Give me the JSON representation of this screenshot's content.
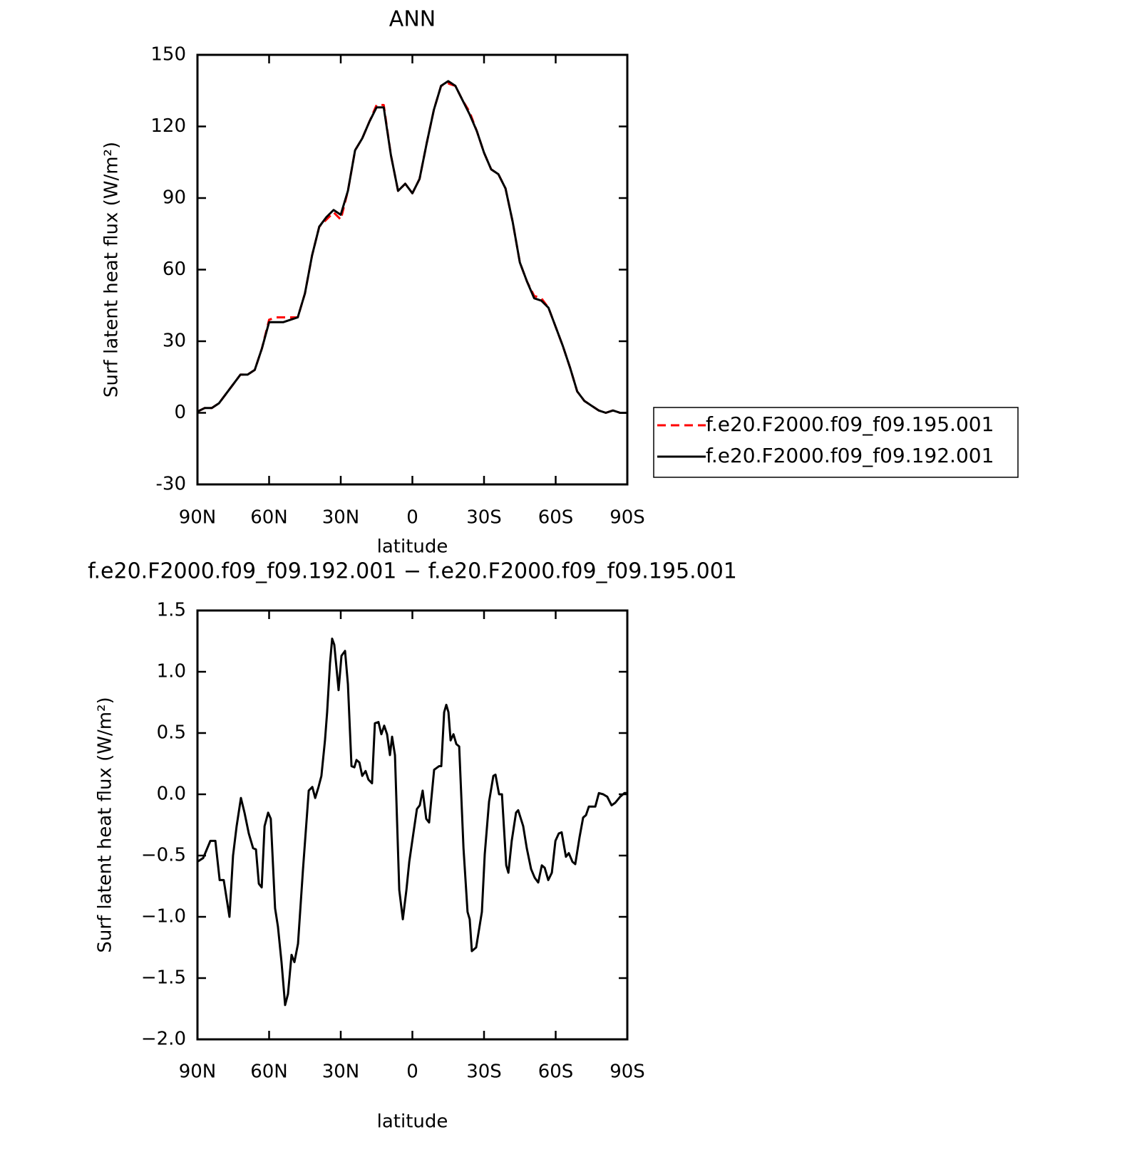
{
  "chart_data": [
    {
      "type": "line",
      "title": "ANN",
      "xlabel": "latitude",
      "ylabel": "Surf latent heat flux (W/m²)",
      "x": [
        90,
        87,
        84,
        81,
        78,
        75,
        72,
        69,
        66,
        63,
        60,
        57,
        54,
        51,
        48,
        45,
        42,
        39,
        36,
        33,
        30,
        27,
        24,
        21,
        18,
        15,
        12,
        9,
        6,
        3,
        0,
        -3,
        -6,
        -9,
        -12,
        -15,
        -18,
        -21,
        -24,
        -27,
        -30,
        -33,
        -36,
        -39,
        -42,
        -45,
        -48,
        -51,
        -54,
        -57,
        -60,
        -63,
        -66,
        -69,
        -72,
        -75,
        -78,
        -81,
        -84,
        -87,
        -90
      ],
      "series": [
        {
          "name": "f.e20.F2000.f09_f09.195.001",
          "color": "#ff0000",
          "linestyle": "dashed",
          "values": [
            0.5,
            2,
            2,
            4,
            8,
            12,
            16,
            16,
            18,
            27,
            39,
            40,
            40,
            40,
            40,
            50,
            66,
            78,
            81,
            84,
            81,
            93,
            110,
            115,
            122,
            129,
            129,
            108,
            93,
            96,
            92,
            98,
            113,
            127,
            137,
            138,
            137,
            131,
            126,
            118,
            109,
            102,
            100,
            94,
            80,
            63,
            55,
            49,
            48,
            44,
            36,
            28,
            19,
            9,
            5,
            3,
            1,
            0,
            1,
            0,
            0
          ]
        },
        {
          "name": "f.e20.F2000.f09_f09.192.001",
          "color": "#000000",
          "linestyle": "solid",
          "values": [
            0.5,
            2,
            2,
            4,
            8,
            12,
            16,
            16,
            18,
            27,
            38,
            38,
            38,
            39,
            40,
            50,
            66,
            78,
            82,
            85,
            83,
            93,
            110,
            115,
            122,
            128,
            128,
            108,
            93,
            96,
            92,
            98,
            113,
            127,
            137,
            139,
            137,
            131,
            125,
            118,
            109,
            102,
            100,
            94,
            80,
            63,
            55,
            48,
            47,
            44,
            36,
            28,
            19,
            9,
            5,
            3,
            1,
            0,
            1,
            0,
            0
          ]
        }
      ],
      "xlim": [
        90,
        -90
      ],
      "xticks": [
        {
          "value": 90,
          "label": "90N"
        },
        {
          "value": 60,
          "label": "60N"
        },
        {
          "value": 30,
          "label": "30N"
        },
        {
          "value": 0,
          "label": "0"
        },
        {
          "value": -30,
          "label": "30S"
        },
        {
          "value": -60,
          "label": "60S"
        },
        {
          "value": -90,
          "label": "90S"
        }
      ],
      "ylim": [
        -30,
        150
      ],
      "yticks": [
        -30,
        0,
        30,
        60,
        90,
        120,
        150
      ],
      "legend": "right"
    },
    {
      "type": "line",
      "title": "f.e20.F2000.f09_f09.192.001 − f.e20.F2000.f09_f09.195.001",
      "xlabel": "latitude",
      "ylabel": "Surf latent heat flux (W/m²)",
      "x": [
        90,
        87.6,
        84.6,
        82.5,
        80.7,
        79.0,
        76.6,
        75.1,
        73.6,
        71.8,
        70.3,
        68.5,
        66.7,
        65.5,
        64.3,
        63.1,
        61.9,
        60.4,
        59.3,
        57.5,
        56.3,
        54.8,
        53.3,
        52.1,
        50.6,
        49.4,
        47.9,
        45.8,
        43.4,
        41.9,
        40.7,
        39.3,
        38.1,
        36.6,
        35.7,
        34.5,
        33.6,
        32.7,
        30.9,
        29.7,
        28.2,
        27.0,
        25.5,
        24.3,
        23.4,
        22.2,
        21.0,
        19.6,
        18.4,
        16.9,
        15.7,
        14.2,
        13.0,
        11.8,
        10.6,
        9.4,
        8.5,
        7.3,
        5.5,
        4.0,
        2.5,
        1.3,
        -0.4,
        -1.9,
        -3.1,
        -4.3,
        -5.8,
        -7.0,
        -9.1,
        -11.2,
        -12.1,
        -13.3,
        -14.2,
        -15.1,
        -16.0,
        -17.2,
        -18.4,
        -19.6,
        -21.4,
        -23.1,
        -24.0,
        -24.9,
        -26.7,
        -29.1,
        -30.3,
        -32.1,
        -33.9,
        -34.8,
        -36.3,
        -37.5,
        -39.3,
        -40.2,
        -41.6,
        -43.4,
        -44.3,
        -46.4,
        -47.9,
        -49.7,
        -51.2,
        -52.7,
        -54.2,
        -55.4,
        -56.9,
        -58.4,
        -59.9,
        -61.3,
        -62.5,
        -64.3,
        -65.5,
        -67.0,
        -68.2,
        -70.0,
        -71.5,
        -72.7,
        -73.9,
        -75.1,
        -76.6,
        -78.1,
        -79.9,
        -81.6,
        -83.4,
        -84.9,
        -87.0,
        -88.8,
        -90
      ],
      "series": [
        {
          "name": "f.e20.F2000.f09_f09.192.001 − f.e20.F2000.f09_f09.195.001",
          "color": "#000000",
          "linestyle": "solid",
          "values": [
            -0.55,
            -0.52,
            -0.38,
            -0.38,
            -0.7,
            -0.7,
            -1.0,
            -0.5,
            -0.26,
            -0.03,
            -0.15,
            -0.32,
            -0.44,
            -0.45,
            -0.73,
            -0.76,
            -0.26,
            -0.15,
            -0.2,
            -0.93,
            -1.08,
            -1.37,
            -1.72,
            -1.63,
            -1.31,
            -1.37,
            -1.22,
            -0.61,
            0.03,
            0.06,
            -0.03,
            0.06,
            0.15,
            0.44,
            0.67,
            1.07,
            1.27,
            1.22,
            0.85,
            1.13,
            1.17,
            0.9,
            0.23,
            0.22,
            0.28,
            0.26,
            0.15,
            0.19,
            0.12,
            0.09,
            0.58,
            0.59,
            0.49,
            0.56,
            0.49,
            0.32,
            0.47,
            0.32,
            -0.78,
            -1.02,
            -0.78,
            -0.55,
            -0.32,
            -0.12,
            -0.09,
            0.03,
            -0.2,
            -0.23,
            0.2,
            0.23,
            0.23,
            0.67,
            0.73,
            0.67,
            0.44,
            0.49,
            0.41,
            0.39,
            -0.44,
            -0.96,
            -1.02,
            -1.28,
            -1.25,
            -0.96,
            -0.49,
            -0.06,
            0.15,
            0.16,
            0,
            0,
            -0.58,
            -0.64,
            -0.38,
            -0.15,
            -0.13,
            -0.26,
            -0.44,
            -0.61,
            -0.68,
            -0.72,
            -0.58,
            -0.6,
            -0.7,
            -0.64,
            -0.38,
            -0.32,
            -0.31,
            -0.51,
            -0.48,
            -0.55,
            -0.57,
            -0.35,
            -0.19,
            -0.17,
            -0.1,
            -0.1,
            -0.1,
            0.01,
            0,
            -0.02,
            -0.09,
            -0.07,
            -0.02,
            0.01,
            0.01
          ]
        }
      ],
      "xlim": [
        90,
        -90
      ],
      "xticks": [
        {
          "value": 90,
          "label": "90N"
        },
        {
          "value": 60,
          "label": "60N"
        },
        {
          "value": 30,
          "label": "30N"
        },
        {
          "value": 0,
          "label": "0"
        },
        {
          "value": -30,
          "label": "30S"
        },
        {
          "value": -60,
          "label": "60S"
        },
        {
          "value": -90,
          "label": "90S"
        }
      ],
      "ylim": [
        -2.0,
        1.5
      ],
      "yticks": [
        {
          "value": -2.0,
          "label": "−2.0"
        },
        {
          "value": -1.5,
          "label": "−1.5"
        },
        {
          "value": -1.0,
          "label": "−1.0"
        },
        {
          "value": -0.5,
          "label": "−0.5"
        },
        {
          "value": 0.0,
          "label": "0.0"
        },
        {
          "value": 0.5,
          "label": "0.5"
        },
        {
          "value": 1.0,
          "label": "1.0"
        },
        {
          "value": 1.5,
          "label": "1.5"
        }
      ]
    }
  ]
}
